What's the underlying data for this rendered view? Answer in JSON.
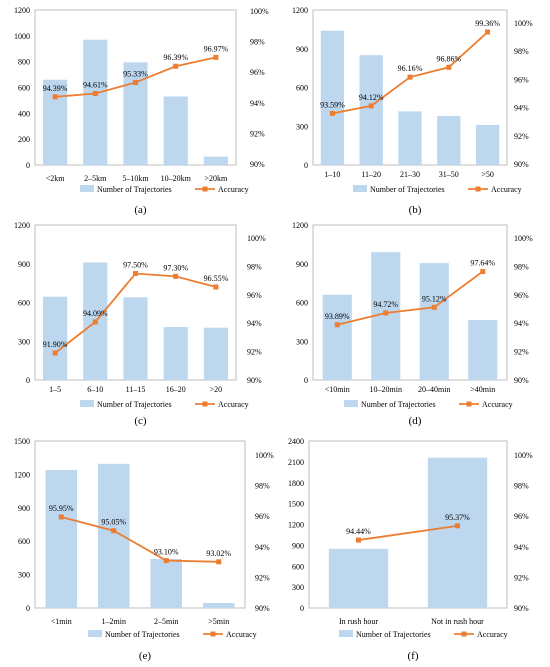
{
  "legend": {
    "bar_label": "Number of Trajectories",
    "line_label": "Accuracy"
  },
  "colors": {
    "bar": "#bdd7ee",
    "line": "#ed7d31",
    "axis": "#bfbfbf",
    "text": "#000000"
  },
  "chart_data": [
    {
      "type": "bar",
      "panel_label": "(a)",
      "categories": [
        "<2km",
        "2–5km",
        "5–10km",
        "10–20km",
        ">20km"
      ],
      "series": [
        {
          "name": "Number of Trajectories",
          "type": "bar",
          "axis": "left",
          "values": [
            660,
            970,
            795,
            530,
            65
          ]
        },
        {
          "name": "Accuracy",
          "type": "line",
          "axis": "right",
          "values": [
            94.39,
            94.61,
            95.33,
            96.39,
            96.97
          ],
          "labels": [
            "94.39%",
            "94.61%",
            "95.33%",
            "96.39%",
            "96.97%"
          ]
        }
      ],
      "y_left": {
        "ylim": [
          0,
          1200
        ],
        "ticks": [
          "0",
          "200",
          "400",
          "600",
          "800",
          "1000",
          "1200"
        ]
      },
      "y_right": {
        "ylim": [
          90,
          100
        ],
        "ticks": [
          "90%",
          "92%",
          "94%",
          "96%",
          "98%",
          "100%"
        ]
      }
    },
    {
      "type": "bar",
      "panel_label": "(b)",
      "categories": [
        "1–10",
        "11–20",
        "21–30",
        "31–50",
        ">50"
      ],
      "series": [
        {
          "name": "Number of Trajectories",
          "type": "bar",
          "axis": "left",
          "values": [
            1040,
            850,
            415,
            380,
            310
          ]
        },
        {
          "name": "Accuracy",
          "type": "line",
          "axis": "right",
          "values": [
            93.59,
            94.12,
            96.16,
            96.86,
            99.36
          ],
          "labels": [
            "93.59%",
            "94.12%",
            "96.16%",
            "96.86%",
            "99.36%"
          ]
        }
      ],
      "y_left": {
        "ylim": [
          0,
          1200
        ],
        "ticks": [
          "0",
          "300",
          "600",
          "900",
          "1200"
        ]
      },
      "y_right": {
        "ylim": [
          90,
          100
        ],
        "ticks": [
          "90%",
          "92%",
          "94%",
          "96%",
          "98%",
          "100%"
        ]
      }
    },
    {
      "type": "bar",
      "panel_label": "(c)",
      "categories": [
        "1–5",
        "6–10",
        "11–15",
        "16–20",
        ">20"
      ],
      "series": [
        {
          "name": "Number of Trajectories",
          "type": "bar",
          "axis": "left",
          "values": [
            645,
            910,
            640,
            410,
            405
          ]
        },
        {
          "name": "Accuracy",
          "type": "line",
          "axis": "right",
          "values": [
            91.9,
            94.09,
            97.5,
            97.3,
            96.55
          ],
          "labels": [
            "91.90%",
            "94.09%",
            "97.50%",
            "97.30%",
            "96.55%"
          ]
        }
      ],
      "y_left": {
        "ylim": [
          0,
          1200
        ],
        "ticks": [
          "0",
          "300",
          "600",
          "900",
          "1200"
        ]
      },
      "y_right": {
        "ylim": [
          90,
          100
        ],
        "ticks": [
          "90%",
          "92%",
          "94%",
          "96%",
          "98%",
          "100%"
        ]
      }
    },
    {
      "type": "bar",
      "panel_label": "(d)",
      "categories": [
        "<10min",
        "10–20min",
        "20–40min",
        ">40min"
      ],
      "series": [
        {
          "name": "Number of Trajectories",
          "type": "bar",
          "axis": "left",
          "values": [
            660,
            990,
            905,
            465
          ]
        },
        {
          "name": "Accuracy",
          "type": "line",
          "axis": "right",
          "values": [
            93.89,
            94.72,
            95.12,
            97.64
          ],
          "labels": [
            "93.89%",
            "94.72%",
            "95.12%",
            "97.64%"
          ]
        }
      ],
      "y_left": {
        "ylim": [
          0,
          1200
        ],
        "ticks": [
          "0",
          "300",
          "600",
          "900",
          "1200"
        ]
      },
      "y_right": {
        "ylim": [
          90,
          100
        ],
        "ticks": [
          "90%",
          "92%",
          "94%",
          "96%",
          "98%",
          "100%"
        ]
      }
    },
    {
      "type": "bar",
      "panel_label": "(e)",
      "categories": [
        "<1min",
        "1–2min",
        "2–5min",
        ">5min"
      ],
      "series": [
        {
          "name": "Number of Trajectories",
          "type": "bar",
          "axis": "left",
          "values": [
            1240,
            1295,
            440,
            45
          ]
        },
        {
          "name": "Accuracy",
          "type": "line",
          "axis": "right",
          "values": [
            95.95,
            95.05,
            93.1,
            93.02
          ],
          "labels": [
            "95.95%",
            "95.05%",
            "93.10%",
            "93.02%"
          ]
        }
      ],
      "y_left": {
        "ylim": [
          0,
          1500
        ],
        "ticks": [
          "0",
          "300",
          "600",
          "900",
          "1200",
          "1500"
        ]
      },
      "y_right": {
        "ylim": [
          90,
          100
        ],
        "ticks": [
          "90%",
          "92%",
          "94%",
          "96%",
          "98%",
          "100%"
        ]
      }
    },
    {
      "type": "bar",
      "panel_label": "(f)",
      "categories": [
        "In rush hour",
        "Not in rush hour"
      ],
      "series": [
        {
          "name": "Number of Trajectories",
          "type": "bar",
          "axis": "left",
          "values": [
            850,
            2160
          ]
        },
        {
          "name": "Accuracy",
          "type": "line",
          "axis": "right",
          "values": [
            94.44,
            95.37
          ],
          "labels": [
            "94.44%",
            "95.37%"
          ]
        }
      ],
      "y_left": {
        "ylim": [
          0,
          2400
        ],
        "ticks": [
          "0",
          "300",
          "600",
          "900",
          "1200",
          "1500",
          "1800",
          "2100",
          "2400"
        ]
      },
      "y_right": {
        "ylim": [
          90,
          100
        ],
        "ticks": [
          "90%",
          "92%",
          "94%",
          "96%",
          "98%",
          "100%"
        ]
      }
    }
  ]
}
